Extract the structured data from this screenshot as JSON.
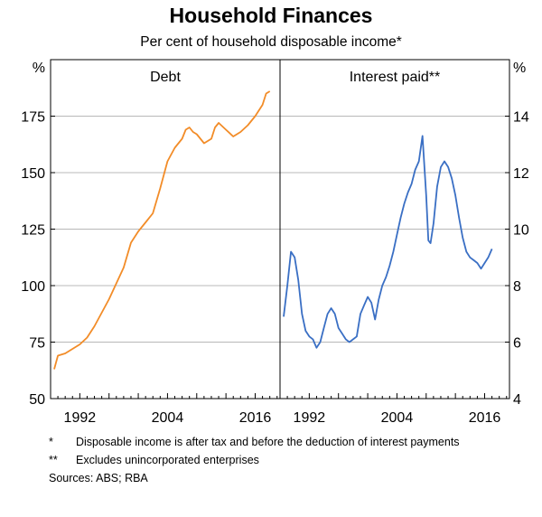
{
  "title": "Household Finances",
  "subtitle": "Per cent of household disposable income*",
  "colors": {
    "debt": "#F28C28",
    "interest": "#3A6FC4",
    "axis": "#000000",
    "grid": "#B8B8B8"
  },
  "chart_data": [
    {
      "type": "line",
      "panel_title": "Debt",
      "ylabel": "%",
      "ylim": [
        50,
        200
      ],
      "yticks": [
        50,
        75,
        100,
        125,
        150,
        175
      ],
      "xlim": [
        1988.0,
        2019.4
      ],
      "xticks": [
        1992,
        2004,
        2016
      ],
      "grid": true,
      "series": [
        {
          "color": "#F28C28",
          "x": [
            1988.5,
            1989,
            1990,
            1991,
            1992,
            1993,
            1994,
            1995,
            1996,
            1997,
            1998,
            1999,
            2000,
            2001,
            2002,
            2003,
            2004,
            2005,
            2006,
            2006.5,
            2007,
            2007.5,
            2008,
            2009,
            2010,
            2010.5,
            2011,
            2012,
            2013,
            2014,
            2015,
            2016,
            2017,
            2017.5,
            2018
          ],
          "values": [
            63,
            69,
            70,
            72,
            74,
            77,
            82,
            88,
            94,
            101,
            108,
            119,
            124,
            128,
            132,
            143,
            155,
            161,
            165,
            169,
            170,
            168,
            167,
            163,
            165,
            170,
            172,
            169,
            166,
            168,
            171,
            175,
            180,
            185,
            186
          ]
        }
      ]
    },
    {
      "type": "line",
      "panel_title": "Interest paid**",
      "ylabel": "%",
      "ylim": [
        4,
        16
      ],
      "yticks": [
        4,
        6,
        8,
        10,
        12,
        14
      ],
      "xlim": [
        1988.0,
        2019.4
      ],
      "xticks": [
        1992,
        2004,
        2016
      ],
      "grid": true,
      "series": [
        {
          "color": "#3A6FC4",
          "x": [
            1988.5,
            1989,
            1989.5,
            1990,
            1990.5,
            1991,
            1991.5,
            1992,
            1992.5,
            1993,
            1993.5,
            1994,
            1994.5,
            1995,
            1995.5,
            1996,
            1996.5,
            1997,
            1997.5,
            1998,
            1998.5,
            1999,
            1999.5,
            2000,
            2000.5,
            2001,
            2001.5,
            2002,
            2002.5,
            2003,
            2003.5,
            2004,
            2004.5,
            2005,
            2005.5,
            2006,
            2006.5,
            2007,
            2007.5,
            2008,
            2008.3,
            2008.6,
            2009,
            2009.5,
            2010,
            2010.5,
            2011,
            2011.5,
            2012,
            2012.5,
            2013,
            2013.5,
            2014,
            2014.5,
            2015,
            2015.5,
            2016,
            2016.5,
            2017
          ],
          "values": [
            6.9,
            8.0,
            9.2,
            9.0,
            8.2,
            7.0,
            6.4,
            6.2,
            6.1,
            5.8,
            6.0,
            6.5,
            7.0,
            7.2,
            7.0,
            6.5,
            6.3,
            6.1,
            6.0,
            6.1,
            6.2,
            7.0,
            7.3,
            7.6,
            7.4,
            6.8,
            7.5,
            8.0,
            8.3,
            8.7,
            9.2,
            9.8,
            10.4,
            10.9,
            11.3,
            11.6,
            12.1,
            12.4,
            13.3,
            11.2,
            9.6,
            9.5,
            10.2,
            11.5,
            12.2,
            12.4,
            12.2,
            11.8,
            11.2,
            10.4,
            9.7,
            9.2,
            9.0,
            8.9,
            8.8,
            8.6,
            8.8,
            9.0,
            9.3
          ]
        }
      ]
    }
  ],
  "footnotes": [
    {
      "mark": "*",
      "text": "Disposable income is after tax and before the deduction of interest payments"
    },
    {
      "mark": "**",
      "text": "Excludes unincorporated enterprises"
    }
  ],
  "sources": "Sources:  ABS; RBA"
}
